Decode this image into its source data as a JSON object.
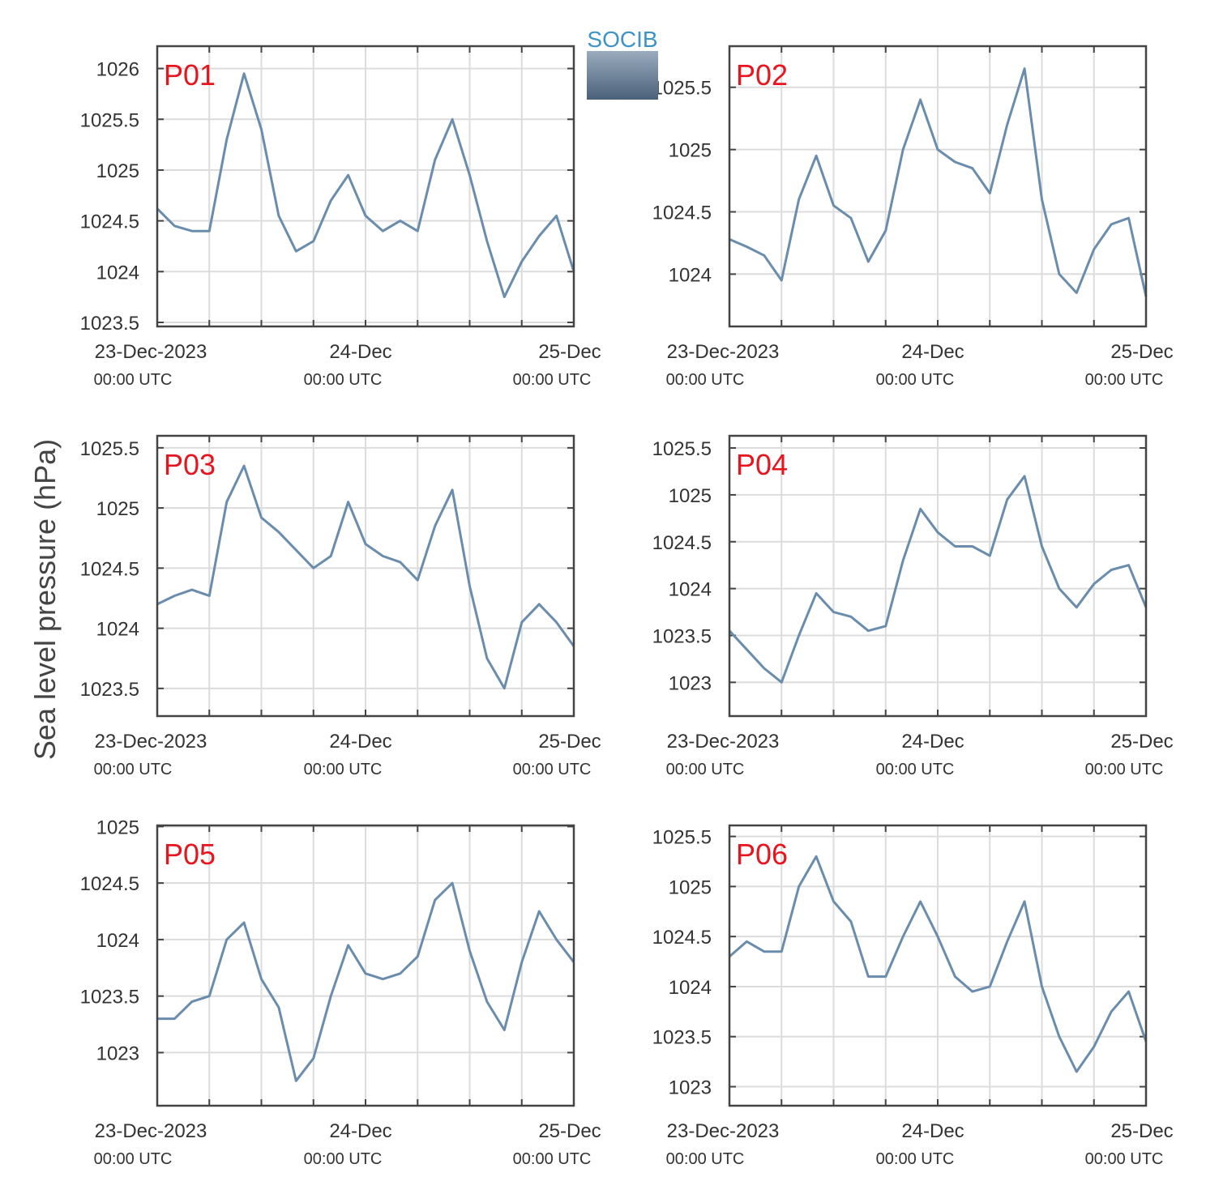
{
  "logo": "SOCIB",
  "ylabel": "Sea level pressure (hPa)",
  "chart_data": [
    {
      "type": "line",
      "title": "P01",
      "xlim": [
        0,
        48
      ],
      "ylim": [
        1023.46,
        1026.22
      ],
      "yticks": [
        1023.5,
        1024,
        1024.5,
        1025,
        1025.5,
        1026
      ],
      "xticks": [
        {
          "value": 0,
          "label": "23-Dec-2023",
          "sublabel": "00:00 UTC"
        },
        {
          "value": 24,
          "label": "24-Dec",
          "sublabel": "00:00 UTC"
        },
        {
          "value": 48,
          "label": "25-Dec",
          "sublabel": "00:00 UTC"
        }
      ],
      "xgrid": [
        6,
        12,
        18,
        30,
        36,
        42
      ],
      "grid": true,
      "x": [
        0,
        2,
        4,
        6,
        8,
        10,
        12,
        14,
        16,
        18,
        20,
        22,
        24,
        26,
        28,
        30,
        32,
        34,
        36,
        38,
        40,
        42,
        44,
        46,
        48
      ],
      "series": [
        {
          "color": "#6a8cad",
          "values": [
            1024.62,
            1024.45,
            1024.4,
            1024.4,
            1025.3,
            1025.95,
            1025.4,
            1024.55,
            1024.2,
            1024.3,
            1024.7,
            1024.95,
            1024.55,
            1024.4,
            1024.5,
            1024.4,
            1025.1,
            1025.5,
            1024.95,
            1024.3,
            1023.75,
            1024.1,
            1024.35,
            1024.55,
            1024.0
          ]
        }
      ]
    },
    {
      "type": "line",
      "title": "P02",
      "xlim": [
        0,
        48
      ],
      "ylim": [
        1023.58,
        1025.83
      ],
      "yticks": [
        1024,
        1024.5,
        1025,
        1025.5
      ],
      "xticks": [
        {
          "value": 0,
          "label": "23-Dec-2023",
          "sublabel": "00:00 UTC"
        },
        {
          "value": 24,
          "label": "24-Dec",
          "sublabel": "00:00 UTC"
        },
        {
          "value": 48,
          "label": "25-Dec",
          "sublabel": "00:00 UTC"
        }
      ],
      "xgrid": [
        6,
        12,
        18,
        30,
        36,
        42
      ],
      "grid": true,
      "x": [
        0,
        2,
        4,
        6,
        8,
        10,
        12,
        14,
        16,
        18,
        20,
        22,
        24,
        26,
        28,
        30,
        32,
        34,
        36,
        38,
        40,
        42,
        44,
        46,
        48
      ],
      "series": [
        {
          "color": "#6a8cad",
          "values": [
            1024.28,
            1024.22,
            1024.15,
            1023.95,
            1024.6,
            1024.95,
            1024.55,
            1024.45,
            1024.1,
            1024.35,
            1025.0,
            1025.4,
            1025.0,
            1024.9,
            1024.85,
            1024.65,
            1025.2,
            1025.65,
            1024.6,
            1024.0,
            1023.85,
            1024.2,
            1024.4,
            1024.45,
            1023.82
          ]
        }
      ]
    },
    {
      "type": "line",
      "title": "P03",
      "xlim": [
        0,
        48
      ],
      "ylim": [
        1023.27,
        1025.6
      ],
      "yticks": [
        1023.5,
        1024,
        1024.5,
        1025,
        1025.5
      ],
      "xticks": [
        {
          "value": 0,
          "label": "23-Dec-2023",
          "sublabel": "00:00 UTC"
        },
        {
          "value": 24,
          "label": "24-Dec",
          "sublabel": "00:00 UTC"
        },
        {
          "value": 48,
          "label": "25-Dec",
          "sublabel": "00:00 UTC"
        }
      ],
      "xgrid": [
        6,
        12,
        18,
        30,
        36,
        42
      ],
      "grid": true,
      "x": [
        0,
        2,
        4,
        6,
        8,
        10,
        12,
        14,
        16,
        18,
        20,
        22,
        24,
        26,
        28,
        30,
        32,
        34,
        36,
        38,
        40,
        42,
        44,
        46,
        48
      ],
      "series": [
        {
          "color": "#6a8cad",
          "values": [
            1024.2,
            1024.27,
            1024.32,
            1024.27,
            1025.05,
            1025.35,
            1024.92,
            1024.8,
            1024.65,
            1024.5,
            1024.6,
            1025.05,
            1024.7,
            1024.6,
            1024.55,
            1024.4,
            1024.85,
            1025.15,
            1024.35,
            1023.75,
            1023.5,
            1024.05,
            1024.2,
            1024.05,
            1023.85
          ]
        }
      ]
    },
    {
      "type": "line",
      "title": "P04",
      "xlim": [
        0,
        48
      ],
      "ylim": [
        1022.64,
        1025.63
      ],
      "yticks": [
        1023,
        1023.5,
        1024,
        1024.5,
        1025,
        1025.5
      ],
      "xticks": [
        {
          "value": 0,
          "label": "23-Dec-2023",
          "sublabel": "00:00 UTC"
        },
        {
          "value": 24,
          "label": "24-Dec",
          "sublabel": "00:00 UTC"
        },
        {
          "value": 48,
          "label": "25-Dec",
          "sublabel": "00:00 UTC"
        }
      ],
      "xgrid": [
        6,
        12,
        18,
        30,
        36,
        42
      ],
      "grid": true,
      "x": [
        0,
        2,
        4,
        6,
        8,
        10,
        12,
        14,
        16,
        18,
        20,
        22,
        24,
        26,
        28,
        30,
        32,
        34,
        36,
        38,
        40,
        42,
        44,
        46,
        48
      ],
      "series": [
        {
          "color": "#6a8cad",
          "values": [
            1023.55,
            1023.35,
            1023.15,
            1023.0,
            1023.5,
            1023.95,
            1023.75,
            1023.7,
            1023.55,
            1023.6,
            1024.3,
            1024.85,
            1024.6,
            1024.45,
            1024.45,
            1024.35,
            1024.95,
            1025.2,
            1024.45,
            1024.0,
            1023.8,
            1024.05,
            1024.2,
            1024.25,
            1023.8
          ]
        }
      ]
    },
    {
      "type": "line",
      "title": "P05",
      "xlim": [
        0,
        48
      ],
      "ylim": [
        1022.53,
        1025.01
      ],
      "yticks": [
        1023,
        1023.5,
        1024,
        1024.5,
        1025
      ],
      "xticks": [
        {
          "value": 0,
          "label": "23-Dec-2023",
          "sublabel": "00:00 UTC"
        },
        {
          "value": 24,
          "label": "24-Dec",
          "sublabel": "00:00 UTC"
        },
        {
          "value": 48,
          "label": "25-Dec",
          "sublabel": "00:00 UTC"
        }
      ],
      "xgrid": [
        6,
        12,
        18,
        30,
        36,
        42
      ],
      "grid": true,
      "x": [
        0,
        2,
        4,
        6,
        8,
        10,
        12,
        14,
        16,
        18,
        20,
        22,
        24,
        26,
        28,
        30,
        32,
        34,
        36,
        38,
        40,
        42,
        44,
        46,
        48
      ],
      "series": [
        {
          "color": "#6a8cad",
          "values": [
            1023.3,
            1023.3,
            1023.45,
            1023.5,
            1024.0,
            1024.15,
            1023.65,
            1023.4,
            1022.75,
            1022.95,
            1023.5,
            1023.95,
            1023.7,
            1023.65,
            1023.7,
            1023.85,
            1024.35,
            1024.5,
            1023.9,
            1023.45,
            1023.2,
            1023.8,
            1024.25,
            1024.0,
            1023.8
          ]
        }
      ]
    },
    {
      "type": "line",
      "title": "P06",
      "xlim": [
        0,
        48
      ],
      "ylim": [
        1022.81,
        1025.61
      ],
      "yticks": [
        1023,
        1023.5,
        1024,
        1024.5,
        1025,
        1025.5
      ],
      "xticks": [
        {
          "value": 0,
          "label": "23-Dec-2023",
          "sublabel": "00:00 UTC"
        },
        {
          "value": 24,
          "label": "24-Dec",
          "sublabel": "00:00 UTC"
        },
        {
          "value": 48,
          "label": "25-Dec",
          "sublabel": "00:00 UTC"
        }
      ],
      "xgrid": [
        6,
        12,
        18,
        30,
        36,
        42
      ],
      "grid": true,
      "x": [
        0,
        2,
        4,
        6,
        8,
        10,
        12,
        14,
        16,
        18,
        20,
        22,
        24,
        26,
        28,
        30,
        32,
        34,
        36,
        38,
        40,
        42,
        44,
        46,
        48
      ],
      "series": [
        {
          "color": "#6a8cad",
          "values": [
            1024.3,
            1024.45,
            1024.35,
            1024.35,
            1025.0,
            1025.3,
            1024.85,
            1024.65,
            1024.1,
            1024.1,
            1024.5,
            1024.85,
            1024.5,
            1024.1,
            1023.95,
            1024.0,
            1024.45,
            1024.85,
            1024.0,
            1023.5,
            1023.15,
            1023.4,
            1023.75,
            1023.95,
            1023.45
          ]
        }
      ]
    }
  ]
}
